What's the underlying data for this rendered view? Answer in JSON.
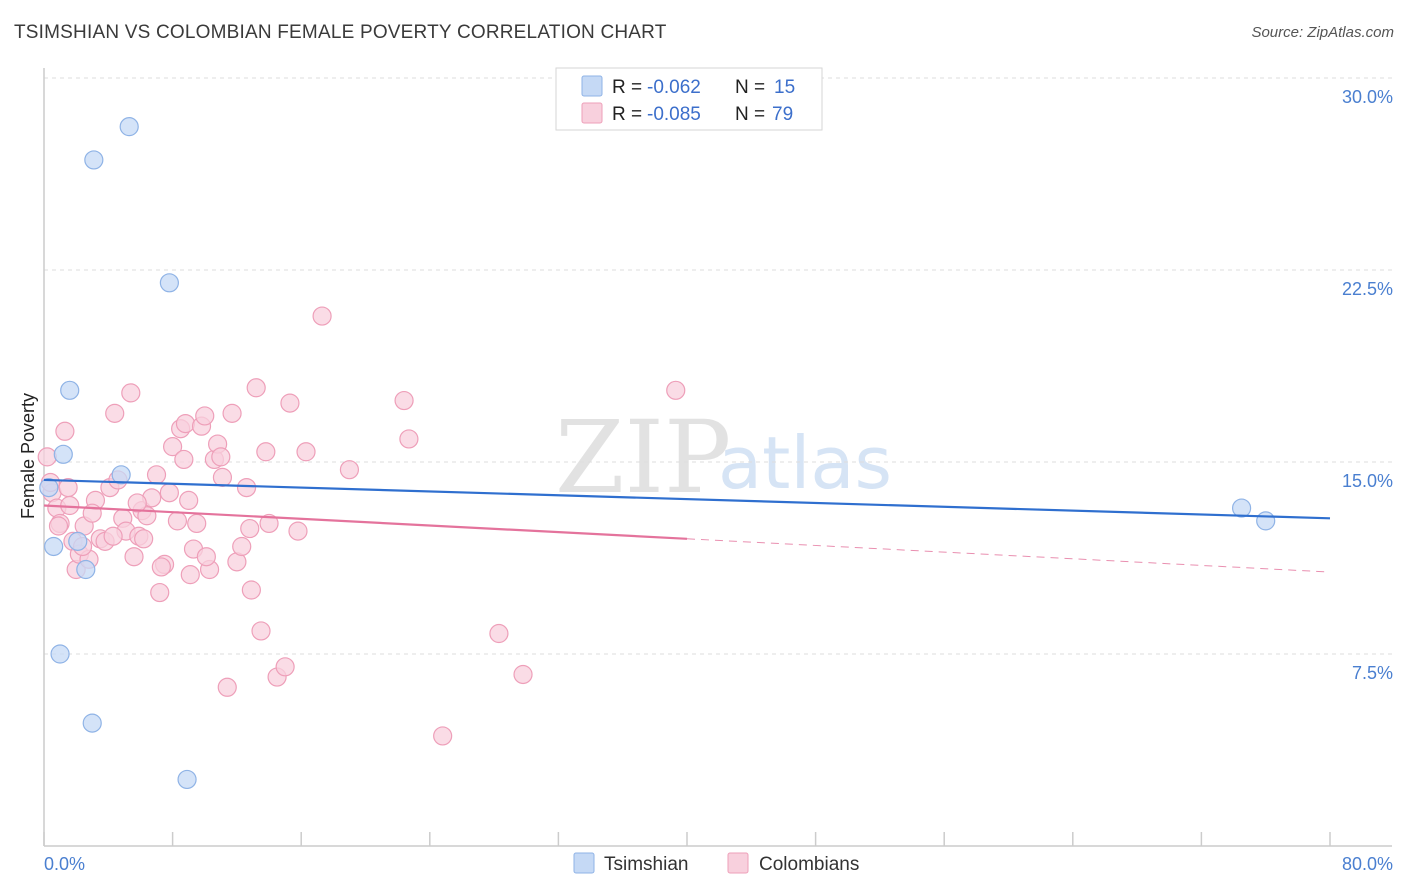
{
  "title": "TSIMSHIAN VS COLOMBIAN FEMALE POVERTY CORRELATION CHART",
  "source": "Source: ZipAtlas.com",
  "watermark": {
    "zip": "ZIP",
    "atlas": "atlas"
  },
  "legend_top": {
    "rows": [
      {
        "r_label": "R =",
        "r_value": "-0.062",
        "n_label": "N =",
        "n_value": "15"
      },
      {
        "r_label": "R =",
        "r_value": "-0.085",
        "n_label": "N =",
        "n_value": "79"
      }
    ]
  },
  "legend_bottom": [
    "Tsimshian",
    "Colombians"
  ],
  "colors": {
    "tsimshian_fill": "#c5d9f5",
    "tsimshian_stroke": "#8fb3e6",
    "tsimshian_line": "#2f6fcf",
    "colombian_fill": "#f8d0dd",
    "colombian_stroke": "#ee9fb9",
    "colombian_line": "#e4739c",
    "grid": "#dddddd",
    "axis_label": "#4a7fd0"
  },
  "chart_data": {
    "type": "scatter",
    "title": "TSIMSHIAN VS COLOMBIAN FEMALE POVERTY CORRELATION CHART",
    "xlabel": "",
    "ylabel": "Female Poverty",
    "xlim": [
      0,
      80
    ],
    "ylim": [
      0,
      30
    ],
    "x_tick_labels": [
      "0.0%",
      "80.0%"
    ],
    "y_ticks": [
      7.5,
      15.0,
      22.5,
      30.0
    ],
    "y_tick_labels": [
      "7.5%",
      "15.0%",
      "22.5%",
      "30.0%"
    ],
    "series": [
      {
        "name": "Tsimshian",
        "R": -0.062,
        "N": 15,
        "trend": {
          "x0": 0,
          "y0": 14.3,
          "x1": 80,
          "y1": 12.8,
          "solid_until": 80
        },
        "points": [
          [
            0.3,
            14.0
          ],
          [
            0.6,
            11.7
          ],
          [
            1.0,
            7.5
          ],
          [
            1.2,
            15.3
          ],
          [
            1.6,
            17.8
          ],
          [
            2.1,
            11.9
          ],
          [
            2.6,
            10.8
          ],
          [
            3.1,
            26.8
          ],
          [
            4.8,
            14.5
          ],
          [
            5.3,
            28.1
          ],
          [
            7.8,
            22.0
          ],
          [
            3.0,
            4.8
          ],
          [
            8.9,
            2.6
          ],
          [
            74.5,
            13.2
          ],
          [
            76.0,
            12.7
          ]
        ]
      },
      {
        "name": "Colombians",
        "R": -0.085,
        "N": 79,
        "trend": {
          "x0": 0,
          "y0": 13.3,
          "x1": 80,
          "y1": 10.7,
          "solid_until": 40
        },
        "points": [
          [
            0.2,
            15.2
          ],
          [
            0.5,
            13.8
          ],
          [
            0.8,
            13.2
          ],
          [
            1.0,
            12.6
          ],
          [
            1.3,
            16.2
          ],
          [
            1.5,
            14.0
          ],
          [
            1.8,
            11.9
          ],
          [
            2.0,
            10.8
          ],
          [
            2.2,
            11.4
          ],
          [
            2.5,
            12.5
          ],
          [
            2.8,
            11.2
          ],
          [
            3.2,
            13.5
          ],
          [
            3.5,
            12.0
          ],
          [
            3.8,
            11.9
          ],
          [
            4.1,
            14.0
          ],
          [
            4.4,
            16.9
          ],
          [
            4.6,
            14.3
          ],
          [
            4.9,
            12.8
          ],
          [
            5.1,
            12.3
          ],
          [
            5.4,
            17.7
          ],
          [
            5.6,
            11.3
          ],
          [
            5.9,
            12.1
          ],
          [
            6.1,
            13.1
          ],
          [
            6.4,
            12.9
          ],
          [
            6.7,
            13.6
          ],
          [
            7.0,
            14.5
          ],
          [
            7.2,
            9.9
          ],
          [
            7.5,
            11.0
          ],
          [
            7.8,
            13.8
          ],
          [
            8.0,
            15.6
          ],
          [
            8.3,
            12.7
          ],
          [
            8.5,
            16.3
          ],
          [
            8.8,
            16.5
          ],
          [
            9.0,
            13.5
          ],
          [
            9.3,
            11.6
          ],
          [
            9.5,
            12.6
          ],
          [
            9.8,
            16.4
          ],
          [
            10.0,
            16.8
          ],
          [
            10.3,
            10.8
          ],
          [
            10.6,
            15.1
          ],
          [
            10.8,
            15.7
          ],
          [
            11.1,
            14.4
          ],
          [
            11.4,
            6.2
          ],
          [
            11.7,
            16.9
          ],
          [
            12.0,
            11.1
          ],
          [
            12.3,
            11.7
          ],
          [
            12.6,
            14.0
          ],
          [
            12.9,
            10.0
          ],
          [
            13.2,
            17.9
          ],
          [
            13.5,
            8.4
          ],
          [
            14.0,
            12.6
          ],
          [
            14.5,
            6.6
          ],
          [
            15.0,
            7.0
          ],
          [
            15.3,
            17.3
          ],
          [
            15.8,
            12.3
          ],
          [
            16.3,
            15.4
          ],
          [
            17.3,
            20.7
          ],
          [
            19.0,
            14.7
          ],
          [
            22.4,
            17.4
          ],
          [
            22.7,
            15.9
          ],
          [
            24.8,
            4.3
          ],
          [
            28.3,
            8.3
          ],
          [
            29.8,
            6.7
          ],
          [
            39.3,
            17.8
          ],
          [
            0.4,
            14.2
          ],
          [
            0.9,
            12.5
          ],
          [
            1.6,
            13.3
          ],
          [
            2.4,
            11.7
          ],
          [
            3.0,
            13.0
          ],
          [
            6.2,
            12.0
          ],
          [
            7.3,
            10.9
          ],
          [
            9.1,
            10.6
          ],
          [
            10.1,
            11.3
          ],
          [
            11.0,
            15.2
          ],
          [
            12.8,
            12.4
          ],
          [
            13.8,
            15.4
          ],
          [
            4.3,
            12.1
          ],
          [
            5.8,
            13.4
          ],
          [
            8.7,
            15.1
          ]
        ]
      }
    ]
  }
}
